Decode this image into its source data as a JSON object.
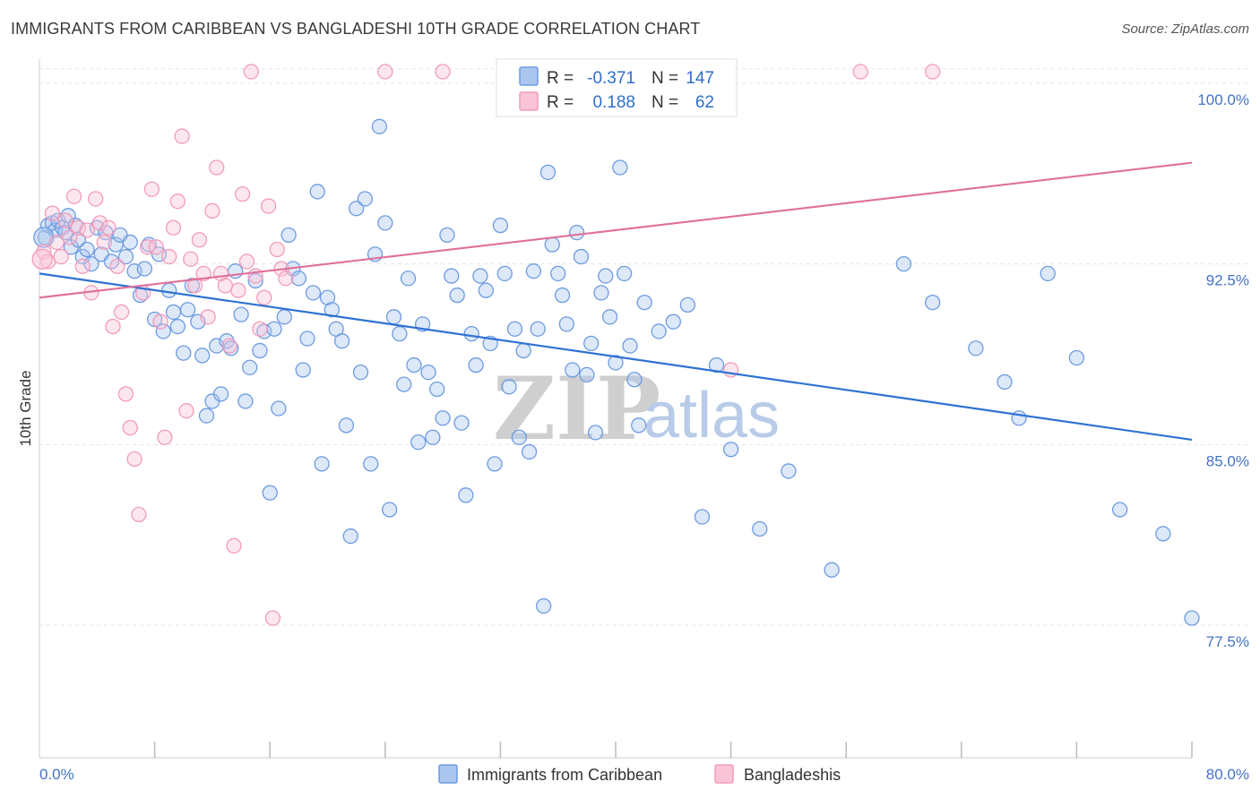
{
  "title": "IMMIGRANTS FROM CARIBBEAN VS BANGLADESHI 10TH GRADE CORRELATION CHART",
  "source": "Source: ZipAtlas.com",
  "watermark": {
    "part1": "ZIP",
    "part2": "atlas"
  },
  "chart_data": {
    "type": "scatter",
    "title": "IMMIGRANTS FROM CARIBBEAN VS BANGLADESHI 10TH GRADE CORRELATION CHART",
    "xlabel": "",
    "ylabel": "10th Grade",
    "xlim": [
      0,
      80
    ],
    "ylim": [
      72,
      101
    ],
    "x_tick_labels": [
      "0.0%",
      "80.0%"
    ],
    "y_ticks": [
      77.5,
      85.0,
      92.5,
      100.0
    ],
    "y_tick_labels": [
      "77.5%",
      "85.0%",
      "92.5%",
      "100.0%"
    ],
    "grid": true,
    "legend_position": "bottom",
    "colors": {
      "caribbean": "#6d9be0",
      "bangladeshi": "#f29bb8",
      "caribbean_line": "#2e72d2",
      "bangladeshi_line": "#e0709a"
    },
    "stats": [
      {
        "r_label": "R =",
        "r": "-0.371",
        "n_label": "N =",
        "n": "147"
      },
      {
        "r_label": "R =",
        "r": "0.188",
        "n_label": "N =",
        "n": "62"
      }
    ],
    "series": [
      {
        "name": "Immigrants from Caribbean",
        "trend": {
          "x": [
            0,
            80
          ],
          "y": [
            92.1,
            85.2
          ]
        },
        "points": [
          [
            0.4,
            93.6
          ],
          [
            0.6,
            94.1
          ],
          [
            0.9,
            94.2
          ],
          [
            1.1,
            93.9
          ],
          [
            1.3,
            94.3
          ],
          [
            1.6,
            94.0
          ],
          [
            1.8,
            93.8
          ],
          [
            2.0,
            94.5
          ],
          [
            2.2,
            93.2
          ],
          [
            2.5,
            94.1
          ],
          [
            2.7,
            93.5
          ],
          [
            3.0,
            92.8
          ],
          [
            3.3,
            93.1
          ],
          [
            3.6,
            92.5
          ],
          [
            4.0,
            94.0
          ],
          [
            4.3,
            92.9
          ],
          [
            4.6,
            93.8
          ],
          [
            5.0,
            92.6
          ],
          [
            5.3,
            93.3
          ],
          [
            5.6,
            93.7
          ],
          [
            6.0,
            92.8
          ],
          [
            6.3,
            93.4
          ],
          [
            6.6,
            92.2
          ],
          [
            7.0,
            91.2
          ],
          [
            7.3,
            92.3
          ],
          [
            7.6,
            93.3
          ],
          [
            8.0,
            90.2
          ],
          [
            8.3,
            92.9
          ],
          [
            8.6,
            89.7
          ],
          [
            9.0,
            91.4
          ],
          [
            9.3,
            90.5
          ],
          [
            9.6,
            89.9
          ],
          [
            10.0,
            88.8
          ],
          [
            10.3,
            90.6
          ],
          [
            10.6,
            91.6
          ],
          [
            11.0,
            90.1
          ],
          [
            11.3,
            88.7
          ],
          [
            11.6,
            86.2
          ],
          [
            12.0,
            86.8
          ],
          [
            12.3,
            89.1
          ],
          [
            12.6,
            87.1
          ],
          [
            13.0,
            89.3
          ],
          [
            13.3,
            89.0
          ],
          [
            13.6,
            92.2
          ],
          [
            14.0,
            90.4
          ],
          [
            14.3,
            86.8
          ],
          [
            14.6,
            88.2
          ],
          [
            15.0,
            91.8
          ],
          [
            15.3,
            88.9
          ],
          [
            15.6,
            89.7
          ],
          [
            16.0,
            83.0
          ],
          [
            16.3,
            89.8
          ],
          [
            16.6,
            86.5
          ],
          [
            17.0,
            90.3
          ],
          [
            17.3,
            93.7
          ],
          [
            17.6,
            92.3
          ],
          [
            18.0,
            91.9
          ],
          [
            18.3,
            88.1
          ],
          [
            18.6,
            89.4
          ],
          [
            19.0,
            91.3
          ],
          [
            19.3,
            95.5
          ],
          [
            19.6,
            84.2
          ],
          [
            20.0,
            91.1
          ],
          [
            20.3,
            90.6
          ],
          [
            20.6,
            89.8
          ],
          [
            21.0,
            89.3
          ],
          [
            21.3,
            85.8
          ],
          [
            21.6,
            81.2
          ],
          [
            22.0,
            94.8
          ],
          [
            22.3,
            88.0
          ],
          [
            22.6,
            95.2
          ],
          [
            23.0,
            84.2
          ],
          [
            23.3,
            92.9
          ],
          [
            23.6,
            98.2
          ],
          [
            24.0,
            94.2
          ],
          [
            24.3,
            82.3
          ],
          [
            24.6,
            90.3
          ],
          [
            25.0,
            89.6
          ],
          [
            25.3,
            87.5
          ],
          [
            25.6,
            91.9
          ],
          [
            26.0,
            88.3
          ],
          [
            26.3,
            85.1
          ],
          [
            26.6,
            90.0
          ],
          [
            27.0,
            88.0
          ],
          [
            27.3,
            85.3
          ],
          [
            27.6,
            87.3
          ],
          [
            28.0,
            86.1
          ],
          [
            28.3,
            93.7
          ],
          [
            28.6,
            92.0
          ],
          [
            29.0,
            91.2
          ],
          [
            29.3,
            85.9
          ],
          [
            29.6,
            82.9
          ],
          [
            30.0,
            89.6
          ],
          [
            30.3,
            88.3
          ],
          [
            30.6,
            92.0
          ],
          [
            31.0,
            91.4
          ],
          [
            31.3,
            89.2
          ],
          [
            31.6,
            84.2
          ],
          [
            32.0,
            94.1
          ],
          [
            32.3,
            92.1
          ],
          [
            32.6,
            87.4
          ],
          [
            33.0,
            89.8
          ],
          [
            33.3,
            85.3
          ],
          [
            33.6,
            88.9
          ],
          [
            34.0,
            84.7
          ],
          [
            34.3,
            92.2
          ],
          [
            34.6,
            89.8
          ],
          [
            35.0,
            78.3
          ],
          [
            35.3,
            96.3
          ],
          [
            35.6,
            93.3
          ],
          [
            36.0,
            92.1
          ],
          [
            36.3,
            91.2
          ],
          [
            36.6,
            90.0
          ],
          [
            37.0,
            88.1
          ],
          [
            37.3,
            93.8
          ],
          [
            37.6,
            92.8
          ],
          [
            38.0,
            87.9
          ],
          [
            38.3,
            89.2
          ],
          [
            38.6,
            85.5
          ],
          [
            39.0,
            91.3
          ],
          [
            39.3,
            92.0
          ],
          [
            39.6,
            90.3
          ],
          [
            40.0,
            88.4
          ],
          [
            40.3,
            96.5
          ],
          [
            40.6,
            92.1
          ],
          [
            41.0,
            89.1
          ],
          [
            41.3,
            87.7
          ],
          [
            41.6,
            85.8
          ],
          [
            42.0,
            90.9
          ],
          [
            43.0,
            89.7
          ],
          [
            44.0,
            90.1
          ],
          [
            45.0,
            90.8
          ],
          [
            46.0,
            82.0
          ],
          [
            47.0,
            88.3
          ],
          [
            48.0,
            84.8
          ],
          [
            50.0,
            81.5
          ],
          [
            52.0,
            83.9
          ],
          [
            55.0,
            79.8
          ],
          [
            60.0,
            92.5
          ],
          [
            62.0,
            90.9
          ],
          [
            65.0,
            89.0
          ],
          [
            67.0,
            87.6
          ],
          [
            68.0,
            86.1
          ],
          [
            70.0,
            92.1
          ],
          [
            72.0,
            88.6
          ],
          [
            75.0,
            82.3
          ],
          [
            78.0,
            81.3
          ],
          [
            80.0,
            77.8
          ]
        ]
      },
      {
        "name": "Bangladeshis",
        "trend": {
          "x": [
            0,
            80
          ],
          "y": [
            91.1,
            96.7
          ]
        },
        "points": [
          [
            0.3,
            93.0
          ],
          [
            0.6,
            92.6
          ],
          [
            0.9,
            94.6
          ],
          [
            1.2,
            93.4
          ],
          [
            1.5,
            92.8
          ],
          [
            1.8,
            94.3
          ],
          [
            2.1,
            93.6
          ],
          [
            2.4,
            95.3
          ],
          [
            2.7,
            94.0
          ],
          [
            3.0,
            92.4
          ],
          [
            3.3,
            93.9
          ],
          [
            3.6,
            91.3
          ],
          [
            3.9,
            95.2
          ],
          [
            4.2,
            94.2
          ],
          [
            4.5,
            93.4
          ],
          [
            4.8,
            94.0
          ],
          [
            5.1,
            89.9
          ],
          [
            5.4,
            92.4
          ],
          [
            5.7,
            90.5
          ],
          [
            6.0,
            87.1
          ],
          [
            6.3,
            85.7
          ],
          [
            6.6,
            84.4
          ],
          [
            6.9,
            82.1
          ],
          [
            7.2,
            91.3
          ],
          [
            7.5,
            93.2
          ],
          [
            7.8,
            95.6
          ],
          [
            8.1,
            93.2
          ],
          [
            8.4,
            90.1
          ],
          [
            8.7,
            85.3
          ],
          [
            9.0,
            92.8
          ],
          [
            9.3,
            94.0
          ],
          [
            9.6,
            95.1
          ],
          [
            9.9,
            97.8
          ],
          [
            10.2,
            86.4
          ],
          [
            10.5,
            92.7
          ],
          [
            10.8,
            91.6
          ],
          [
            11.1,
            93.5
          ],
          [
            11.4,
            92.1
          ],
          [
            11.7,
            90.3
          ],
          [
            12.0,
            94.7
          ],
          [
            12.3,
            96.5
          ],
          [
            12.6,
            92.1
          ],
          [
            12.9,
            91.6
          ],
          [
            13.2,
            89.1
          ],
          [
            13.5,
            80.8
          ],
          [
            13.8,
            91.4
          ],
          [
            14.1,
            95.4
          ],
          [
            14.4,
            92.6
          ],
          [
            14.7,
            100.6
          ],
          [
            15.0,
            92.0
          ],
          [
            15.3,
            89.8
          ],
          [
            15.6,
            91.1
          ],
          [
            15.9,
            94.9
          ],
          [
            16.2,
            77.8
          ],
          [
            16.5,
            93.1
          ],
          [
            16.8,
            92.3
          ],
          [
            17.1,
            91.9
          ],
          [
            24.0,
            100.6
          ],
          [
            28.0,
            100.6
          ],
          [
            48.0,
            88.1
          ],
          [
            57.0,
            100.6
          ],
          [
            62.0,
            100.6
          ]
        ]
      }
    ]
  }
}
